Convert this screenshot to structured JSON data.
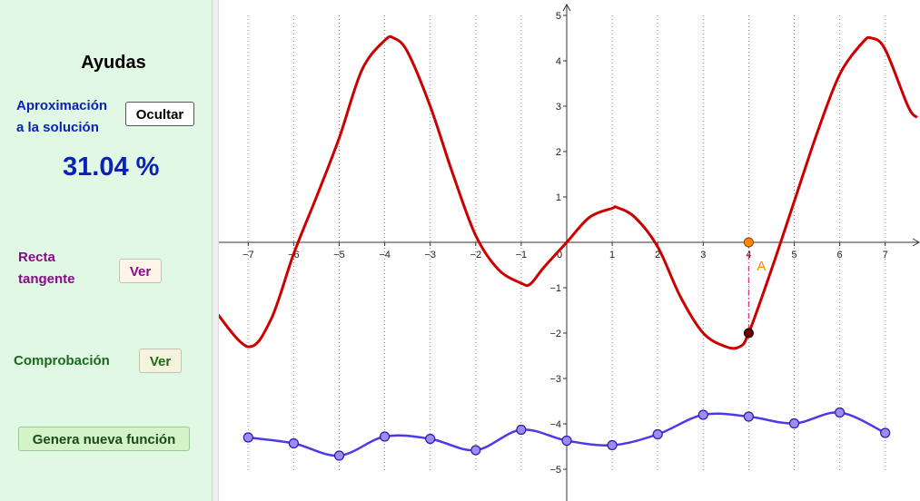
{
  "sidebar": {
    "title": "Ayudas",
    "approx_label_line1": "Aproximación",
    "approx_label_line2": "a la solución",
    "hide_button": "Ocultar",
    "approx_value": "31.04 %",
    "tangent_label_line1": "Recta",
    "tangent_label_line2": "tangente",
    "tangent_button": "Ver",
    "check_label": "Comprobación",
    "check_button": "Ver",
    "new_function_button": "Genera nueva función"
  },
  "colors": {
    "sidebar_bg": "#e0f8e4",
    "approx_blue": "#0a23b6",
    "tangent_purple": "#8a0a8a",
    "check_green": "#1a6a1a",
    "red_curve": "#cc0000",
    "blue_curve": "#4a3ae8",
    "point_orange": "#ff8800",
    "dash_pink": "#e0306a"
  },
  "chart_data": {
    "type": "line",
    "x_ticks": [
      "−7",
      "−6",
      "−5",
      "−4",
      "−3",
      "−2",
      "−1",
      "0",
      "1",
      "2",
      "3",
      "4",
      "5",
      "6",
      "7"
    ],
    "y_ticks": [
      "−5",
      "−4",
      "−3",
      "−2",
      "−1",
      "1",
      "2",
      "3",
      "4",
      "5"
    ],
    "xlim": [
      -7.7,
      7.7
    ],
    "ylim": [
      -5.6,
      5.3
    ],
    "grid": "vertical dotted lines at integer x",
    "series": [
      {
        "color": "#cc0000",
        "x": [
          -7.7,
          -7,
          -6.5,
          -6,
          -5.5,
          -5,
          -4.5,
          -4,
          -3.8,
          -3.5,
          -3,
          -2.5,
          -2,
          -1.5,
          -1,
          -0.8,
          -0.5,
          0,
          0.5,
          1,
          1.1,
          1.5,
          2,
          2.5,
          3,
          3.5,
          3.8,
          4,
          4.5,
          5,
          5.5,
          6,
          6.5,
          6.7,
          7,
          7.5,
          7.7
        ],
        "y": [
          -1.55,
          -2.3,
          -1.7,
          -0.25,
          1.0,
          2.3,
          3.8,
          4.45,
          4.5,
          4.2,
          3.0,
          1.5,
          0.15,
          -0.6,
          -0.9,
          -0.92,
          -0.55,
          0,
          0.55,
          0.75,
          0.77,
          0.55,
          -0.1,
          -1.2,
          -2.0,
          -2.3,
          -2.3,
          -2.0,
          -0.6,
          0.9,
          2.4,
          3.7,
          4.4,
          4.5,
          4.25,
          3.0,
          2.75
        ]
      },
      {
        "color": "#4a3ae8",
        "x": [
          -7,
          -6,
          -5,
          -4,
          -3,
          -2,
          -1,
          0,
          1,
          2,
          3,
          4,
          5,
          6,
          7
        ],
        "y": [
          -4.3,
          -4.43,
          -4.7,
          -4.28,
          -4.33,
          -4.58,
          -4.13,
          -4.37,
          -4.47,
          -4.23,
          -3.8,
          -3.84,
          -3.99,
          -3.75,
          -4.2
        ]
      }
    ],
    "points": [
      {
        "label": "",
        "x": 4,
        "y": 0,
        "color": "#ff8800"
      },
      {
        "label": "",
        "x": 4,
        "y": -2,
        "color": "#6a0000"
      }
    ],
    "point_label": "A"
  }
}
